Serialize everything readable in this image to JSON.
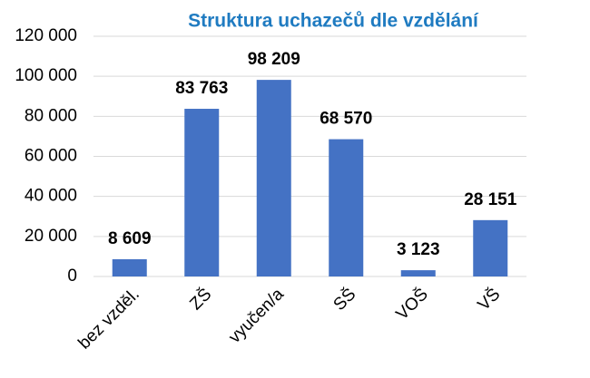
{
  "chart_data": {
    "type": "bar",
    "title": "Struktura uchazečů dle vzdělání",
    "categories": [
      "bez vzděl.",
      "ZŠ",
      "vyučen/a",
      "SŠ",
      "VOŠ",
      "VŠ"
    ],
    "values": [
      8609,
      83763,
      98209,
      68570,
      3123,
      28151
    ],
    "value_labels": [
      "8 609",
      "83 763",
      "98 209",
      "68 570",
      "3 123",
      "28 151"
    ],
    "color": "#4472c4",
    "ylim": [
      0,
      120000
    ],
    "yticks": [
      0,
      {
        "value": 20000,
        "label": "20 000"
      },
      {
        "value": 40000,
        "label": "40 000"
      },
      {
        "value": 60000,
        "label": "60 000"
      },
      {
        "value": 80000,
        "label": "80 000"
      },
      {
        "value": 100000,
        "label": "100 000"
      },
      {
        "value": 120000,
        "label": "120 000"
      }
    ],
    "grid": true
  }
}
